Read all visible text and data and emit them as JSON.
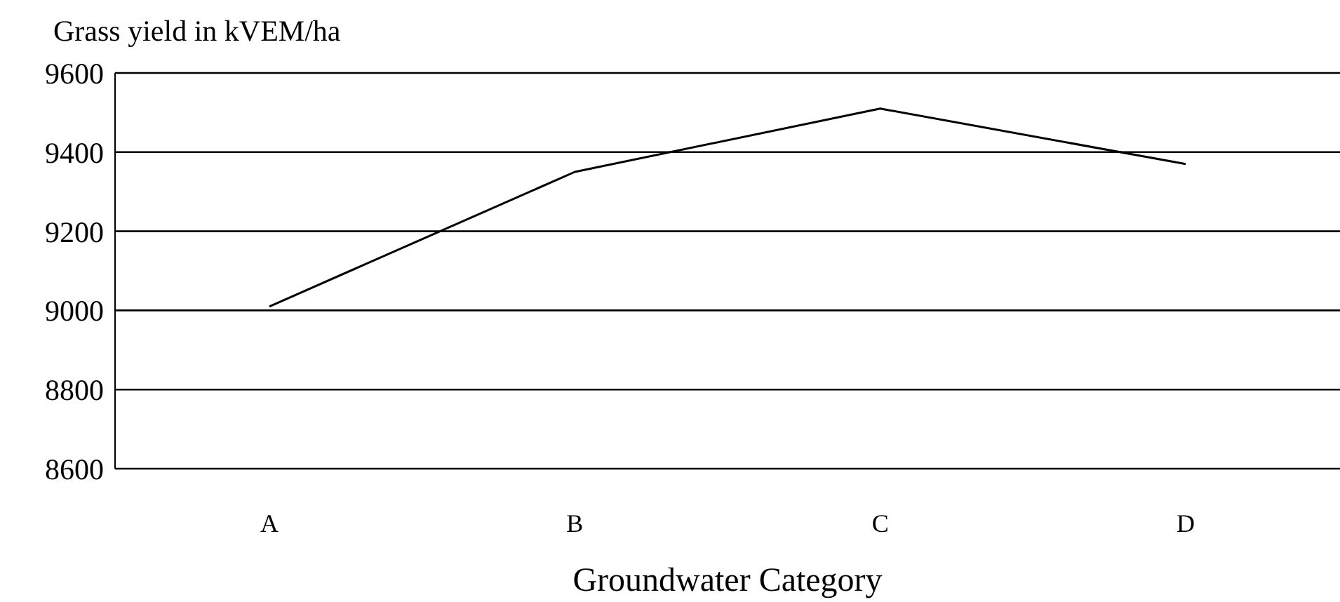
{
  "chart_data": {
    "type": "line",
    "ylabel": "Grass yield in kVEM/ha",
    "xlabel": "Groundwater Category",
    "categories": [
      "A",
      "B",
      "C",
      "D"
    ],
    "series": [
      {
        "color": "#000000",
        "values": [
          9010,
          9350,
          9510,
          9370
        ]
      }
    ],
    "ylim": [
      8600,
      9600
    ],
    "yticks": [
      8600,
      8800,
      9000,
      9200,
      9400,
      9600
    ],
    "grid": "y",
    "marker": "none",
    "line_style": "solid"
  }
}
